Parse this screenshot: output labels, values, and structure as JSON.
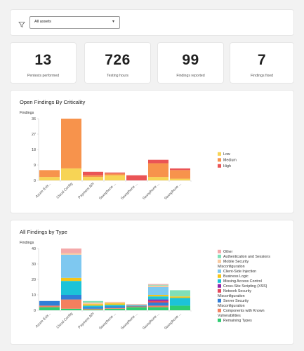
{
  "filter": {
    "label": "Filter",
    "selected": "All assets"
  },
  "stats": [
    {
      "value": "13",
      "label": "Pentests performed"
    },
    {
      "value": "726",
      "label": "Testing hours"
    },
    {
      "value": "99",
      "label": "Findings reported"
    },
    {
      "value": "7",
      "label": "Findings fixed"
    }
  ],
  "chart_data": [
    {
      "type": "bar",
      "title": "Open Findings By Criticality",
      "ylabel": "Findings",
      "ylim": [
        0,
        36
      ],
      "yticks": [
        0,
        9,
        18,
        27,
        36
      ],
      "stacked": true,
      "categories": [
        "Azure Extr...",
        "Cloud Config",
        "Payment API",
        "Saxophone ...",
        "Saxophone ...",
        "Saxophone ...",
        "Saxophone ..."
      ],
      "series": [
        {
          "name": "Low",
          "color": "#f7d455",
          "values": [
            2,
            7,
            2,
            3,
            0,
            2,
            1
          ]
        },
        {
          "name": "Medium",
          "color": "#f7934c",
          "values": [
            4,
            29,
            1,
            1,
            0,
            8,
            5
          ]
        },
        {
          "name": "High",
          "color": "#ea5455",
          "values": [
            0,
            0,
            2,
            0.6,
            3,
            2,
            1
          ]
        }
      ],
      "legend": "right"
    },
    {
      "type": "bar",
      "title": "All Findings by Type",
      "ylabel": "Findings",
      "ylim": [
        0,
        40
      ],
      "yticks": [
        0,
        10,
        20,
        30,
        40
      ],
      "stacked": true,
      "categories": [
        "Azure Extr...",
        "Cloud Config",
        "Payment API",
        "Saxophone ...",
        "Saxophone ...",
        "Saxophone ...",
        "Saxophone ..."
      ],
      "series": [
        {
          "name": "Remaining Types",
          "color": "#2ecc71",
          "values": [
            2,
            1,
            0.5,
            1,
            2,
            2,
            3
          ]
        },
        {
          "name": "Misconfiguration Components with Known Vulnerabilities",
          "color": "#f47f5e",
          "values": [
            1,
            6,
            0.5,
            0.5,
            0.5,
            1,
            0
          ]
        },
        {
          "name": "Server Security",
          "color": "#2f7ed8",
          "values": [
            3,
            3,
            1,
            1,
            0.5,
            2,
            0
          ]
        },
        {
          "name": "Misconfiguration Network Security",
          "color": "#e5475a",
          "values": [
            0,
            0,
            0,
            0,
            0,
            1,
            0
          ]
        },
        {
          "name": "Cross-Site Scripting (XSS)",
          "color": "#8e24aa",
          "values": [
            0,
            0,
            0,
            0,
            0,
            1,
            0
          ]
        },
        {
          "name": "Missing Access Control",
          "color": "#1cc3d8",
          "values": [
            0,
            9,
            1,
            1,
            0,
            2,
            5
          ]
        },
        {
          "name": "Business Logic",
          "color": "#f5c518",
          "values": [
            0,
            2,
            1,
            1,
            0,
            1,
            1
          ]
        },
        {
          "name": "Misconfiguration Client-Side Injection",
          "color": "#7ec8f0",
          "values": [
            0,
            15,
            0,
            0,
            0,
            5,
            0
          ]
        },
        {
          "name": "Mobile Security",
          "color": "#f9c9a0",
          "values": [
            0,
            1,
            1,
            1,
            0,
            1,
            0
          ]
        },
        {
          "name": "Authentication and Sessions",
          "color": "#7fe0b8",
          "values": [
            0,
            0,
            1,
            0,
            0.5,
            0.5,
            4
          ]
        },
        {
          "name": "Other",
          "color": "#f4a9aa",
          "values": [
            0,
            3,
            0,
            0,
            0.5,
            0.5,
            0
          ]
        }
      ],
      "legend": "right"
    }
  ],
  "legend2": [
    {
      "text": "Other",
      "color": "#f4a9aa"
    },
    {
      "text": "Authentication and Sessions",
      "color": "#7fe0b8"
    },
    {
      "text": "Mobile Security",
      "color": "#f9c9a0"
    },
    {
      "text": "Misconfiguration",
      "color": ""
    },
    {
      "text": "Client-Side Injection",
      "color": "#7ec8f0"
    },
    {
      "text": "Business Logic",
      "color": "#f5c518"
    },
    {
      "text": "Missing Access Control",
      "color": "#1cc3d8"
    },
    {
      "text": "Cross-Site Scripting (XSS)",
      "color": "#8e24aa"
    },
    {
      "text": "Network Security",
      "color": "#e5475a"
    },
    {
      "text": "Misconfiguration",
      "color": ""
    },
    {
      "text": "Server Security",
      "color": "#2f7ed8"
    },
    {
      "text": "Misconfiguration",
      "color": ""
    },
    {
      "text": "Components with Known",
      "color": "#f47f5e"
    },
    {
      "text": "Vulnerabilities",
      "color": ""
    },
    {
      "text": "Remaining Types",
      "color": "#2ecc71"
    }
  ]
}
